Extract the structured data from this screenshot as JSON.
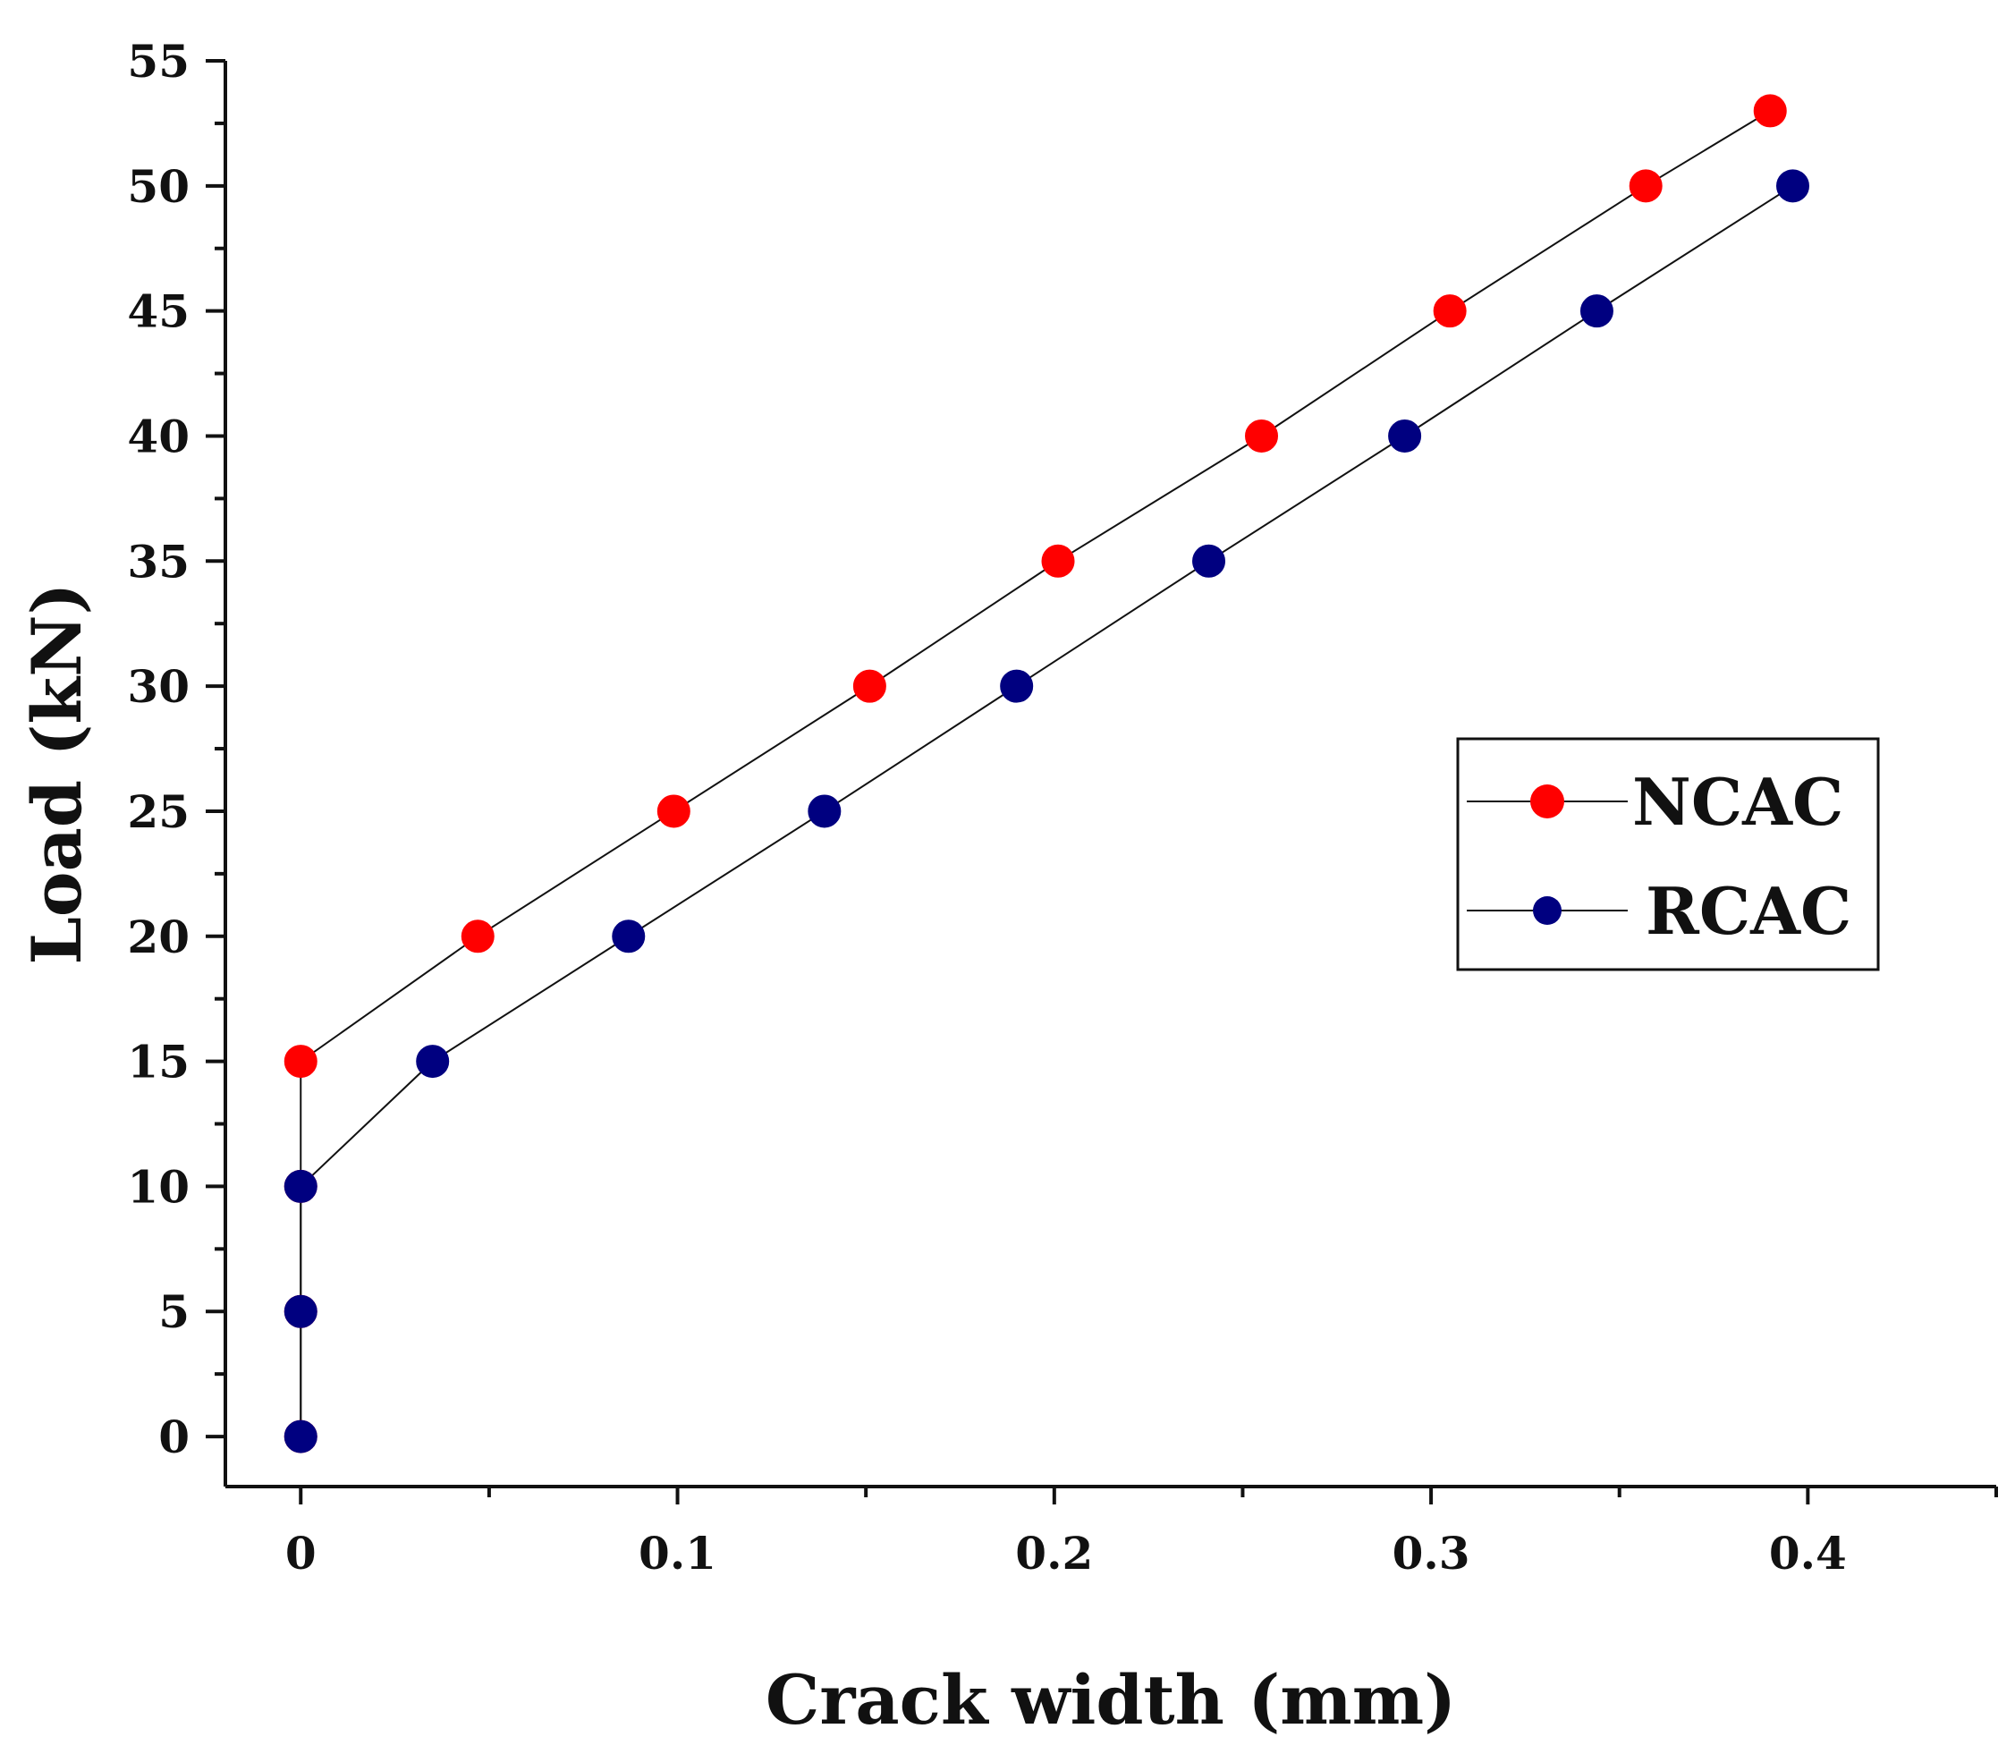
{
  "chart_data": {
    "type": "line",
    "title": "",
    "xlabel": "Crack width (mm)",
    "ylabel": "Load (kN)",
    "xlim": [
      -0.02,
      0.45
    ],
    "ylim": [
      -2,
      55
    ],
    "x_ticks": [
      0,
      0.1,
      0.2,
      0.3,
      0.4
    ],
    "x_tick_labels": [
      "0",
      "0.1",
      "0.2",
      "0.3",
      "0.4"
    ],
    "y_ticks": [
      0,
      5,
      10,
      15,
      20,
      25,
      30,
      35,
      40,
      45,
      50,
      55
    ],
    "y_tick_labels": [
      "0",
      "5",
      "10",
      "15",
      "20",
      "25",
      "30",
      "35",
      "40",
      "45",
      "50",
      "55"
    ],
    "grid": false,
    "legend_position": "right",
    "series": [
      {
        "name": "NCAC",
        "color": "#ff0000",
        "marker": "circle",
        "x": [
          0,
          0,
          0,
          0,
          0.047,
          0.099,
          0.151,
          0.201,
          0.255,
          0.305,
          0.357,
          0.39
        ],
        "y": [
          0,
          5,
          10,
          15,
          20,
          25,
          30,
          35,
          40,
          45,
          50,
          53
        ]
      },
      {
        "name": "RCAC",
        "color": "#000080",
        "marker": "circle",
        "x": [
          0,
          0,
          0,
          0.035,
          0.087,
          0.139,
          0.19,
          0.241,
          0.293,
          0.344,
          0.396
        ],
        "y": [
          0,
          5,
          10,
          15,
          20,
          25,
          30,
          35,
          40,
          45,
          50
        ]
      }
    ]
  }
}
